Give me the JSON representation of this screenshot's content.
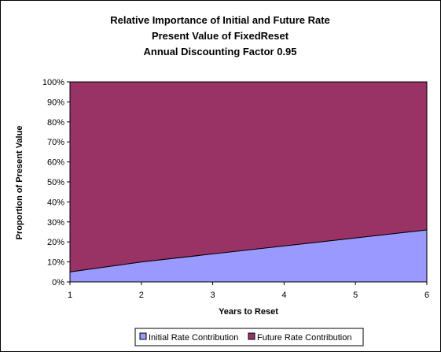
{
  "chart_data": {
    "type": "area",
    "stacked": "percent",
    "title_lines": [
      "Relative Importance of Initial and Future Rate",
      "Present Value of FixedReset",
      "Annual Discounting Factor 0.95"
    ],
    "xlabel": "Years to Reset",
    "ylabel": "Proportion of Present Value",
    "x": [
      1,
      2,
      3,
      4,
      5,
      6
    ],
    "x_tick_labels": [
      "1",
      "2",
      "3",
      "4",
      "5",
      "6"
    ],
    "y_tick_labels": [
      "0%",
      "10%",
      "20%",
      "30%",
      "40%",
      "50%",
      "60%",
      "70%",
      "80%",
      "90%",
      "100%"
    ],
    "ylim": [
      0,
      100
    ],
    "grid": false,
    "legend_position": "bottom",
    "series": [
      {
        "name": "Initial Rate Contribution",
        "values": [
          5,
          10,
          14,
          18,
          22,
          26
        ],
        "color": "#9999ff"
      },
      {
        "name": "Future Rate Contribution",
        "values": [
          95,
          90,
          86,
          82,
          78,
          74
        ],
        "color": "#993366"
      }
    ]
  }
}
